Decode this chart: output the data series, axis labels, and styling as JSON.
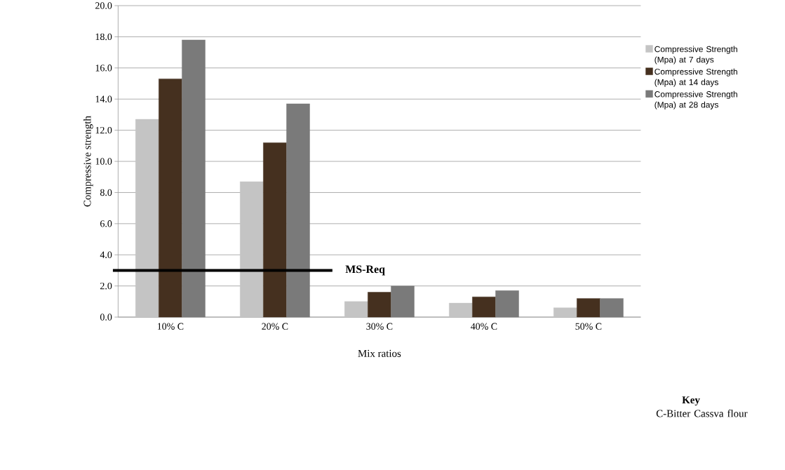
{
  "chart_data": {
    "type": "bar",
    "xlabel": "Mix ratios",
    "ylabel": "Compressive strength",
    "categories": [
      "10% C",
      "20% C",
      "30% C",
      "40% C",
      "50% C"
    ],
    "series": [
      {
        "name": "Compressive  Strength (Mpa) at 7 days",
        "color": "#c4c4c4",
        "values": [
          12.7,
          8.7,
          1.0,
          0.9,
          0.6
        ]
      },
      {
        "name": "Compressive  Strength (Mpa) at 14 days",
        "color": "#45301f",
        "values": [
          15.3,
          11.2,
          1.6,
          1.3,
          1.2
        ]
      },
      {
        "name": "Compressive  Strength (Mpa) at 28 days",
        "color": "#7a7a7a",
        "values": [
          17.8,
          13.7,
          2.0,
          1.7,
          1.2
        ]
      }
    ],
    "ylim": [
      0,
      20
    ],
    "yticks": [
      {
        "value": 0,
        "label": "0.0"
      },
      {
        "value": 2,
        "label": "2.0"
      },
      {
        "value": 4,
        "label": "4.0"
      },
      {
        "value": 6,
        "label": "6.0"
      },
      {
        "value": 8,
        "label": "8.0"
      },
      {
        "value": 10,
        "label": "10.0"
      },
      {
        "value": 12,
        "label": "12.0"
      },
      {
        "value": 14,
        "label": "14.0"
      },
      {
        "value": 16,
        "label": "16.0"
      },
      {
        "value": 18,
        "label": "18.0"
      },
      {
        "value": 20,
        "label": "20.0"
      }
    ],
    "ref_lines": [
      {
        "axis": "y",
        "value": 3.0,
        "label": "MS-Req",
        "color": "#000000"
      }
    ],
    "annotations": [
      "Key",
      "C-Bitter Cassva flour"
    ],
    "grid": "y",
    "legend": "right"
  }
}
